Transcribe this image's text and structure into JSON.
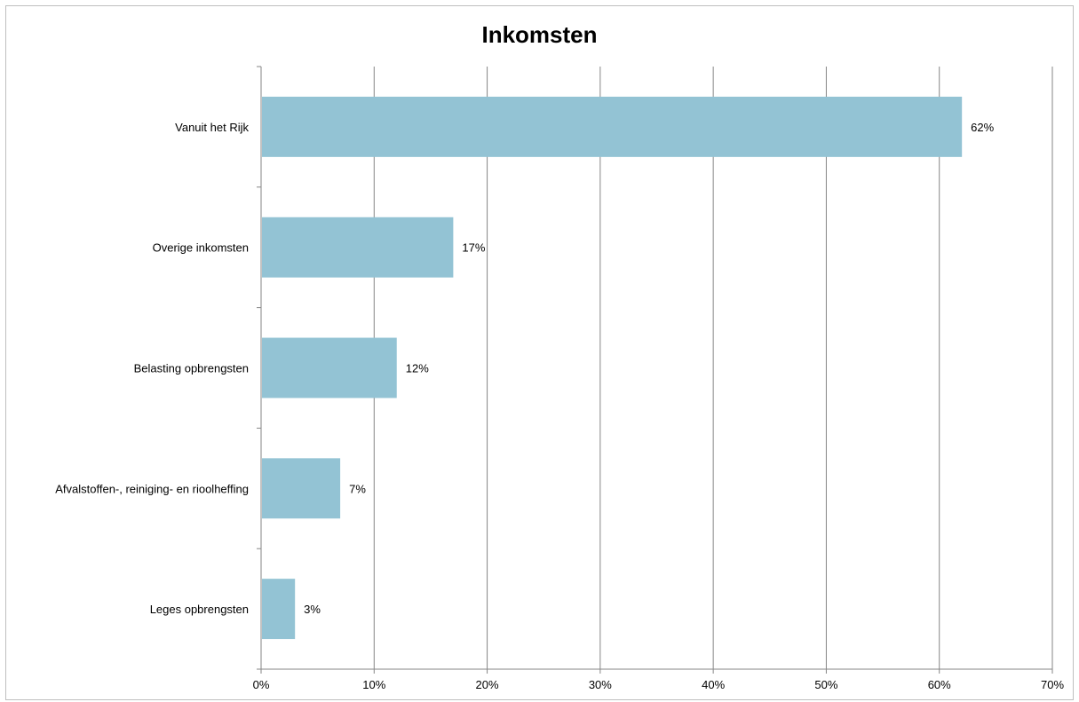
{
  "chart_data": {
    "type": "bar",
    "orientation": "horizontal",
    "title": "Inkomsten",
    "xlabel": "",
    "ylabel": "",
    "categories": [
      "Vanuit het Rijk",
      "Overige inkomsten",
      "Belasting opbrengsten",
      "Afvalstoffen-, reiniging- en rioolheffing",
      "Leges opbrengsten"
    ],
    "values": [
      62,
      17,
      12,
      7,
      3
    ],
    "data_labels": [
      "62%",
      "17%",
      "12%",
      "7%",
      "3%"
    ],
    "xlim": [
      0,
      70
    ],
    "x_ticks": [
      0,
      10,
      20,
      30,
      40,
      50,
      60,
      70
    ],
    "x_tick_labels": [
      "0%",
      "10%",
      "20%",
      "30%",
      "40%",
      "50%",
      "60%",
      "70%"
    ],
    "grid": "vertical",
    "legend": "none",
    "bar_color": "#93c3d4",
    "grid_color": "#868686",
    "axis_color": "#868686"
  }
}
